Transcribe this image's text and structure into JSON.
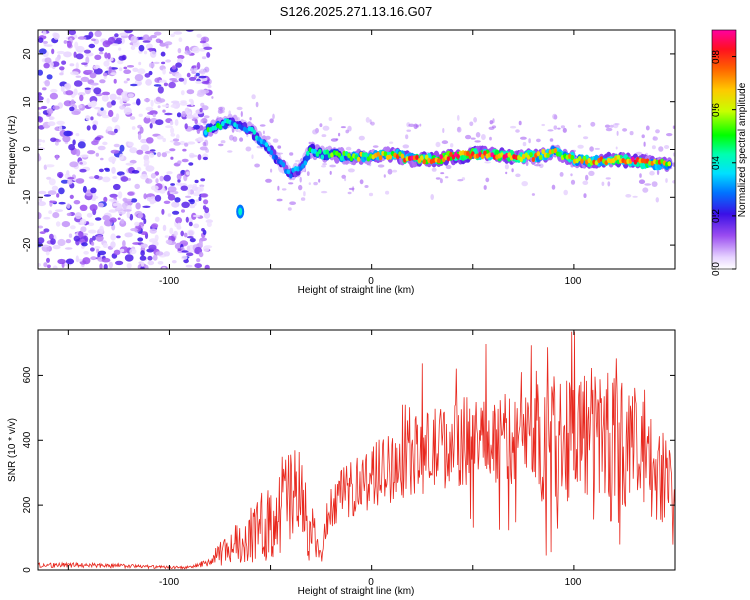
{
  "title": "S126.2025.271.13.16.G07",
  "top_panel": {
    "type": "heatmap",
    "xlabel": "Height of straight line (km)",
    "ylabel": "Frequency (Hz)",
    "xlim": [
      -165,
      150
    ],
    "ylim": [
      -25,
      25
    ],
    "xticks": [
      "-100",
      "0",
      "100"
    ],
    "yticks": [
      "20",
      "10",
      "0",
      "-10",
      "-20"
    ],
    "colorbar": {
      "label": "Normalized spectral amplitude",
      "ticks": [
        "0.0",
        "0.2",
        "0.4",
        "0.6",
        "0.8"
      ],
      "range": [
        0,
        0.9
      ]
    }
  },
  "bottom_panel": {
    "type": "line",
    "xlabel": "Height of straight line (km)",
    "ylabel": "SNR (10 * v/v)",
    "xlim": [
      -165,
      150
    ],
    "ylim": [
      0,
      740
    ],
    "xticks": [
      "-100",
      "0",
      "100"
    ],
    "yticks": [
      "0",
      "200",
      "400",
      "600"
    ],
    "line_color": "#e8281e"
  },
  "chart_data": [
    {
      "type": "heatmap",
      "title": "S126.2025.271.13.16.G07",
      "xlabel": "Height of straight line (km)",
      "ylabel": "Frequency (Hz)",
      "xlim": [
        -165,
        150
      ],
      "ylim": [
        -25,
        25
      ],
      "colorbar_range": [
        0,
        0.9
      ],
      "ridge": {
        "height_km": [
          -82,
          -75,
          -70,
          -65,
          -60,
          -55,
          -50,
          -45,
          -40,
          -35,
          -30,
          -25,
          -20,
          -10,
          0,
          10,
          20,
          30,
          40,
          50,
          60,
          70,
          80,
          90,
          100,
          110,
          120,
          130,
          140,
          148
        ],
        "frequency_hz": [
          4,
          5,
          6,
          5,
          4,
          2,
          0,
          -3,
          -5,
          -4,
          0,
          -1,
          -1,
          -1.5,
          -1.5,
          -1,
          -2,
          -2,
          -1.5,
          -1,
          -1,
          -1.5,
          -1.5,
          -0.5,
          -2,
          -2.5,
          -2,
          -2.5,
          -3,
          -3
        ],
        "amplitude": [
          0.45,
          0.5,
          0.35,
          0.3,
          0.35,
          0.4,
          0.35,
          0.3,
          0.3,
          0.35,
          0.45,
          0.5,
          0.5,
          0.55,
          0.6,
          0.65,
          0.75,
          0.8,
          0.85,
          0.85,
          0.8,
          0.75,
          0.7,
          0.6,
          0.65,
          0.7,
          0.75,
          0.8,
          0.7,
          0.6
        ]
      }
    },
    {
      "type": "line",
      "xlabel": "Height of straight line (km)",
      "ylabel": "SNR (10 * v/v)",
      "xlim": [
        -165,
        150
      ],
      "ylim": [
        0,
        740
      ],
      "series": [
        {
          "name": "SNR",
          "x": [
            -165,
            -140,
            -120,
            -100,
            -90,
            -80,
            -70,
            -60,
            -50,
            -45,
            -40,
            -35,
            -30,
            -25,
            -20,
            -15,
            -10,
            -5,
            0,
            10,
            20,
            30,
            40,
            50,
            60,
            70,
            80,
            90,
            100,
            110,
            120,
            130,
            140,
            150
          ],
          "y": [
            15,
            15,
            12,
            8,
            8,
            25,
            70,
            110,
            150,
            200,
            230,
            200,
            120,
            40,
            200,
            230,
            250,
            270,
            290,
            320,
            350,
            370,
            390,
            400,
            410,
            400,
            420,
            410,
            430,
            420,
            400,
            380,
            300,
            260
          ]
        }
      ]
    }
  ]
}
